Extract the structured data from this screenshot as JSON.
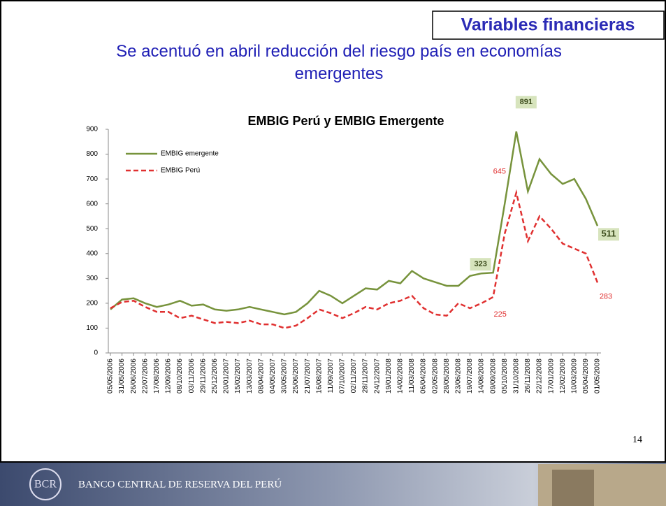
{
  "slide": {
    "tag": "Variables financieras",
    "heading": "Se acentuó en abril reducción del riesgo país en economías emergentes",
    "page_number": 14,
    "footer": "BANCO CENTRAL DE RESERVA DEL PERÚ"
  },
  "chart_data": {
    "type": "line",
    "title": "EMBIG Perú y EMBIG Emergente",
    "categories": [
      "05/05/2006",
      "31/05/2006",
      "26/06/2006",
      "22/07/2006",
      "17/08/2006",
      "12/09/2006",
      "08/10/2006",
      "03/11/2006",
      "29/11/2006",
      "25/12/2006",
      "20/01/2007",
      "15/02/2007",
      "13/03/2007",
      "08/04/2007",
      "04/05/2007",
      "30/05/2007",
      "25/06/2007",
      "21/07/2007",
      "16/08/2007",
      "11/09/2007",
      "07/10/2007",
      "02/11/2007",
      "28/11/2007",
      "24/12/2007",
      "19/01/2008",
      "14/02/2008",
      "11/03/2008",
      "06/04/2008",
      "02/05/2008",
      "28/05/2008",
      "23/06/2008",
      "19/07/2008",
      "14/08/2008",
      "09/09/2008",
      "05/10/2008",
      "31/10/2008",
      "26/11/2008",
      "22/12/2008",
      "17/01/2009",
      "12/02/2009",
      "10/03/2009",
      "05/04/2009",
      "01/05/2009"
    ],
    "series": [
      {
        "name": "EMBIG emergente",
        "color": "#77933c",
        "line_style": "solid",
        "values": [
          175,
          215,
          220,
          200,
          185,
          195,
          210,
          190,
          195,
          175,
          170,
          175,
          185,
          175,
          165,
          155,
          165,
          200,
          250,
          230,
          200,
          230,
          260,
          255,
          290,
          280,
          330,
          300,
          285,
          270,
          270,
          310,
          320,
          323,
          600,
          891,
          650,
          780,
          720,
          680,
          700,
          620,
          511
        ]
      },
      {
        "name": "EMBIG Perú",
        "color": "#e03030",
        "line_style": "dashed",
        "values": [
          180,
          205,
          210,
          185,
          165,
          165,
          140,
          150,
          135,
          120,
          125,
          120,
          130,
          115,
          115,
          100,
          110,
          140,
          175,
          160,
          140,
          160,
          185,
          175,
          200,
          210,
          230,
          180,
          155,
          150,
          200,
          180,
          200,
          225,
          480,
          645,
          450,
          550,
          500,
          440,
          420,
          400,
          283
        ]
      }
    ],
    "ylim": [
      0,
      900
    ],
    "yticks": [
      0,
      100,
      200,
      300,
      400,
      500,
      600,
      700,
      800,
      900
    ],
    "grid": false
  }
}
